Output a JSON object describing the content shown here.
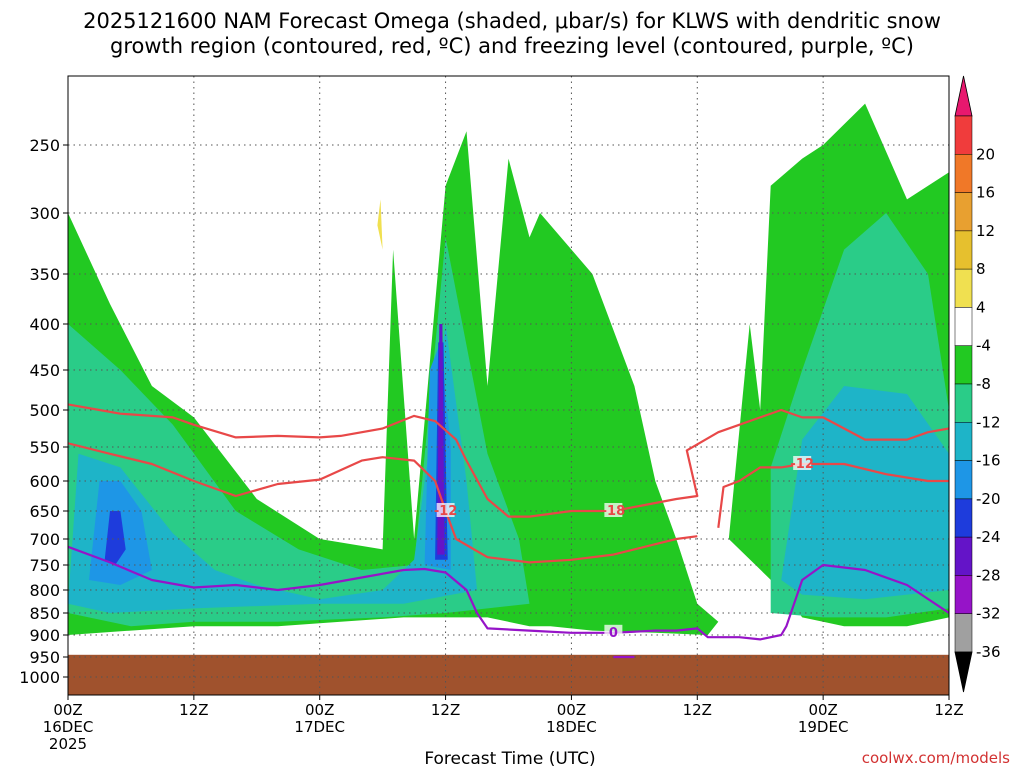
{
  "title": {
    "line1": "2025121600 NAM Forecast Omega (shaded, μbar/s) for KLWS with dendritic snow",
    "line2": "growth region (contoured, red, ºC) and freezing level (contoured, purple, ºC)"
  },
  "credit": "coolwx.com/models",
  "chart_data": {
    "type": "heatmap",
    "xlabel": "Forecast Time (UTC)",
    "ylabel": "",
    "y_scale": "pressure (log-like, inverted)",
    "ylim": [
      1050,
      200
    ],
    "y_ticks": [
      250,
      300,
      350,
      400,
      450,
      500,
      550,
      600,
      650,
      700,
      750,
      800,
      850,
      900,
      950,
      1000
    ],
    "x_ticks_hours": [
      0,
      12,
      24,
      36,
      48,
      60,
      72,
      84
    ],
    "x_tick_labels": [
      [
        "00Z",
        "16DEC",
        "2025"
      ],
      [
        "12Z"
      ],
      [
        "00Z",
        "17DEC"
      ],
      [
        "12Z"
      ],
      [
        "00Z",
        "18DEC"
      ],
      [
        "12Z"
      ],
      [
        "00Z",
        "19DEC"
      ],
      [
        "12Z"
      ]
    ],
    "grid": true,
    "colorbar": {
      "labels": [
        "20",
        "16",
        "12",
        "8",
        "4",
        "-4",
        "-8",
        "-12",
        "-16",
        "-20",
        "-24",
        "-28",
        "-32",
        "-36"
      ],
      "colors": [
        "#e8186e",
        "#f03c3c",
        "#f07828",
        "#e8a030",
        "#e6c02e",
        "#f0e050",
        "#ffffff",
        "#22c922",
        "#2acc88",
        "#1eb4c8",
        "#1e96e6",
        "#1e3cdc",
        "#6414c8",
        "#9614c8",
        "#a0a0a0",
        "#000000"
      ]
    },
    "omega_shading_regions": [
      {
        "level": -8,
        "color": "#22c922",
        "points": [
          [
            0,
            1000
          ],
          [
            0,
            300
          ],
          [
            4,
            380
          ],
          [
            8,
            470
          ],
          [
            12,
            510
          ],
          [
            18,
            630
          ],
          [
            24,
            700
          ],
          [
            30,
            720
          ],
          [
            31,
            330
          ],
          [
            33,
            700
          ],
          [
            36,
            280
          ],
          [
            38,
            240
          ],
          [
            40,
            470
          ],
          [
            42,
            260
          ],
          [
            44,
            320
          ],
          [
            45,
            300
          ],
          [
            50,
            350
          ],
          [
            54,
            470
          ],
          [
            56,
            600
          ],
          [
            58,
            700
          ],
          [
            60,
            830
          ],
          [
            62,
            870
          ],
          [
            61,
            900
          ],
          [
            56,
            895
          ],
          [
            50,
            890
          ],
          [
            46,
            880
          ],
          [
            44,
            880
          ],
          [
            40,
            860
          ],
          [
            36,
            860
          ],
          [
            32,
            860
          ],
          [
            26,
            870
          ],
          [
            20,
            880
          ],
          [
            12,
            880
          ],
          [
            6,
            890
          ],
          [
            0,
            900
          ]
        ]
      },
      {
        "level": -8,
        "color": "#22c922",
        "points": [
          [
            63,
            700
          ],
          [
            65,
            400
          ],
          [
            66,
            500
          ],
          [
            67,
            280
          ],
          [
            70,
            260
          ],
          [
            72,
            250
          ],
          [
            76,
            220
          ],
          [
            80,
            290
          ],
          [
            84,
            270
          ],
          [
            84,
            860
          ],
          [
            80,
            880
          ],
          [
            74,
            880
          ],
          [
            72,
            870
          ],
          [
            70,
            860
          ],
          [
            68,
            800
          ]
        ]
      },
      {
        "level": -12,
        "color": "#2acc88",
        "points": [
          [
            0,
            850
          ],
          [
            0,
            400
          ],
          [
            5,
            450
          ],
          [
            10,
            520
          ],
          [
            16,
            650
          ],
          [
            22,
            720
          ],
          [
            28,
            760
          ],
          [
            33,
            750
          ],
          [
            36,
            320
          ],
          [
            40,
            560
          ],
          [
            43,
            700
          ],
          [
            44,
            830
          ],
          [
            36,
            850
          ],
          [
            30,
            860
          ],
          [
            20,
            870
          ],
          [
            12,
            870
          ],
          [
            6,
            880
          ]
        ]
      },
      {
        "level": -12,
        "color": "#2acc88",
        "points": [
          [
            67,
            850
          ],
          [
            67,
            580
          ],
          [
            70,
            450
          ],
          [
            74,
            330
          ],
          [
            78,
            300
          ],
          [
            82,
            350
          ],
          [
            84,
            500
          ],
          [
            84,
            840
          ],
          [
            78,
            860
          ],
          [
            72,
            860
          ]
        ]
      },
      {
        "level": -16,
        "color": "#1eb4c8",
        "points": [
          [
            0,
            830
          ],
          [
            1,
            560
          ],
          [
            5,
            580
          ],
          [
            10,
            690
          ],
          [
            14,
            760
          ],
          [
            18,
            790
          ],
          [
            24,
            820
          ],
          [
            30,
            800
          ],
          [
            33,
            740
          ],
          [
            36,
            400
          ],
          [
            38,
            600
          ],
          [
            39,
            800
          ],
          [
            32,
            830
          ],
          [
            24,
            830
          ],
          [
            12,
            840
          ],
          [
            4,
            850
          ]
        ]
      },
      {
        "level": -16,
        "color": "#1eb4c8",
        "points": [
          [
            68,
            780
          ],
          [
            70,
            540
          ],
          [
            74,
            470
          ],
          [
            80,
            480
          ],
          [
            84,
            560
          ],
          [
            84,
            800
          ],
          [
            76,
            820
          ],
          [
            70,
            810
          ]
        ]
      },
      {
        "level": -20,
        "color": "#1e96e6",
        "points": [
          [
            2,
            780
          ],
          [
            3,
            600
          ],
          [
            5,
            600
          ],
          [
            7,
            650
          ],
          [
            8,
            760
          ],
          [
            5,
            790
          ]
        ]
      },
      {
        "level": -20,
        "color": "#1e96e6",
        "points": [
          [
            34,
            750
          ],
          [
            34.5,
            450
          ],
          [
            35.5,
            420
          ],
          [
            36.5,
            550
          ],
          [
            36.5,
            760
          ]
        ]
      },
      {
        "level": -24,
        "color": "#1e3cdc",
        "points": [
          [
            3.5,
            740
          ],
          [
            4,
            650
          ],
          [
            5,
            650
          ],
          [
            5.5,
            720
          ],
          [
            4.5,
            750
          ]
        ]
      },
      {
        "level": -24,
        "color": "#1e3cdc",
        "points": [
          [
            35,
            740
          ],
          [
            35.3,
            420
          ],
          [
            35.8,
            420
          ],
          [
            36.2,
            740
          ]
        ]
      },
      {
        "level": -28,
        "color": "#6414c8",
        "points": [
          [
            35.2,
            730
          ],
          [
            35.4,
            400
          ],
          [
            35.7,
            400
          ],
          [
            35.9,
            730
          ]
        ]
      },
      {
        "level": 4,
        "color": "#f0e050",
        "points": [
          [
            29.5,
            310
          ],
          [
            29.8,
            290
          ],
          [
            30,
            330
          ]
        ]
      }
    ],
    "dgz_contours": [
      {
        "label": "-18",
        "color": "#e84848",
        "points": [
          [
            0,
            493
          ],
          [
            3,
            500
          ],
          [
            5,
            505
          ],
          [
            10,
            510
          ],
          [
            12,
            520
          ],
          [
            16,
            537
          ],
          [
            20,
            535
          ],
          [
            24,
            537
          ],
          [
            26,
            535
          ],
          [
            30,
            525
          ],
          [
            33,
            508
          ],
          [
            35,
            515
          ],
          [
            37,
            540
          ],
          [
            38,
            570
          ],
          [
            40,
            630
          ],
          [
            42,
            660
          ],
          [
            44,
            660
          ],
          [
            48,
            650
          ],
          [
            52,
            650
          ],
          [
            55,
            640
          ],
          [
            58,
            630
          ],
          [
            60,
            625
          ],
          [
            59,
            555
          ],
          [
            62,
            530
          ],
          [
            64,
            520
          ],
          [
            66,
            510
          ],
          [
            68,
            500
          ],
          [
            70,
            510
          ],
          [
            72,
            510
          ],
          [
            74,
            525
          ],
          [
            76,
            540
          ],
          [
            80,
            540
          ],
          [
            82,
            530
          ],
          [
            84,
            525
          ]
        ]
      },
      {
        "label": "-12",
        "color": "#e84848",
        "points": [
          [
            0,
            545
          ],
          [
            4,
            560
          ],
          [
            8,
            575
          ],
          [
            12,
            600
          ],
          [
            16,
            625
          ],
          [
            20,
            605
          ],
          [
            24,
            598
          ],
          [
            28,
            570
          ],
          [
            30,
            565
          ],
          [
            33,
            570
          ],
          [
            35,
            600
          ],
          [
            36,
            650
          ],
          [
            37,
            700
          ],
          [
            40,
            735
          ],
          [
            44,
            745
          ],
          [
            48,
            740
          ],
          [
            52,
            730
          ],
          [
            56,
            710
          ],
          [
            58,
            700
          ],
          [
            60,
            695
          ]
        ]
      },
      {
        "label": "-12",
        "color": "#e84848",
        "points": [
          [
            62,
            680
          ],
          [
            62.5,
            610
          ],
          [
            64,
            600
          ],
          [
            66,
            580
          ],
          [
            68,
            580
          ],
          [
            70,
            575
          ],
          [
            74,
            575
          ],
          [
            78,
            590
          ],
          [
            82,
            600
          ],
          [
            84,
            600
          ]
        ]
      }
    ],
    "freezing_level_contours": [
      {
        "label": "0",
        "color": "#9614c8",
        "points": [
          [
            0,
            715
          ],
          [
            4,
            745
          ],
          [
            8,
            780
          ],
          [
            12,
            795
          ],
          [
            16,
            790
          ],
          [
            20,
            800
          ],
          [
            24,
            790
          ],
          [
            28,
            775
          ],
          [
            32,
            760
          ],
          [
            34,
            758
          ],
          [
            36,
            765
          ],
          [
            38,
            800
          ],
          [
            39,
            850
          ],
          [
            40,
            885
          ],
          [
            44,
            890
          ],
          [
            48,
            895
          ],
          [
            52,
            895
          ],
          [
            56,
            890
          ],
          [
            58,
            890
          ],
          [
            60,
            885
          ],
          [
            61,
            905
          ],
          [
            64,
            905
          ],
          [
            66,
            910
          ],
          [
            68,
            900
          ],
          [
            68.5,
            880
          ],
          [
            70,
            780
          ],
          [
            72,
            750
          ],
          [
            76,
            760
          ],
          [
            80,
            790
          ],
          [
            84,
            850
          ]
        ]
      },
      {
        "label": "",
        "color": "#9614c8",
        "points": [
          [
            52,
            950
          ],
          [
            54,
            950
          ]
        ]
      }
    ],
    "terrain": {
      "color": "#a0522d",
      "surface_pressure": 945
    }
  }
}
